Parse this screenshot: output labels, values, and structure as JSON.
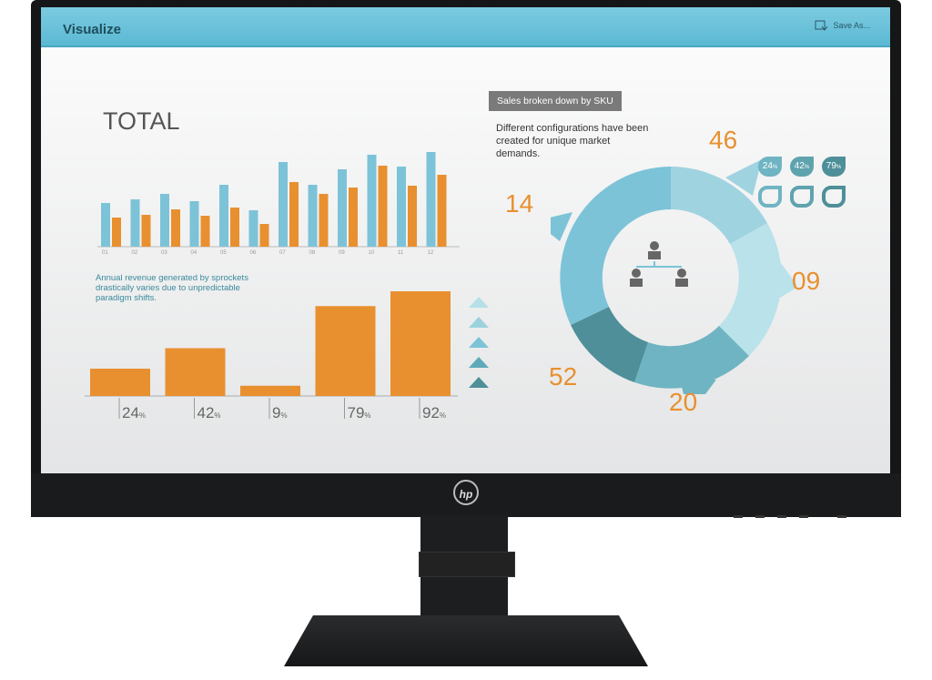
{
  "header": {
    "title": "Visualize",
    "save_label": "Save As...",
    "save_icon": "save-file-icon"
  },
  "total": {
    "title": "TOTAL"
  },
  "colors": {
    "blue": "#7cc3d8",
    "orange": "#e8902f",
    "teal_dark": "#4e8f99",
    "bar_color": "#5cb9d3"
  },
  "note": {
    "text": "Annual revenue generated by sprockets drastically varies due to unpredictable paradigm shifts."
  },
  "sku": {
    "tag": "Sales broken down by SKU",
    "description": "Different configurations have been created for unique market demands."
  },
  "drops": [
    {
      "label": "24",
      "unit": "%"
    },
    {
      "label": "42",
      "unit": "%"
    },
    {
      "label": "79",
      "unit": "%"
    }
  ],
  "donut": {
    "labels": [
      "46",
      "09",
      "20",
      "52",
      "14"
    ],
    "icon": "people-hierarchy-icon"
  },
  "brand": {
    "logo": "hp"
  },
  "chart_data": [
    {
      "type": "bar",
      "categories": [
        "01",
        "02",
        "03",
        "04",
        "05",
        "06",
        "07",
        "08",
        "09",
        "10",
        "11",
        "12"
      ],
      "series": [
        {
          "values": [
            48,
            52,
            58,
            50,
            68,
            40,
            93,
            68,
            85,
            101,
            88,
            104
          ]
        },
        {
          "values": [
            32,
            35,
            41,
            34,
            43,
            25,
            71,
            58,
            65,
            89,
            67,
            79
          ]
        }
      ]
    },
    {
      "type": "bar",
      "categories": [
        "24",
        "42",
        "9",
        "79",
        "92"
      ],
      "values": [
        24,
        42,
        9,
        79,
        92
      ],
      "unit": "%"
    }
  ]
}
